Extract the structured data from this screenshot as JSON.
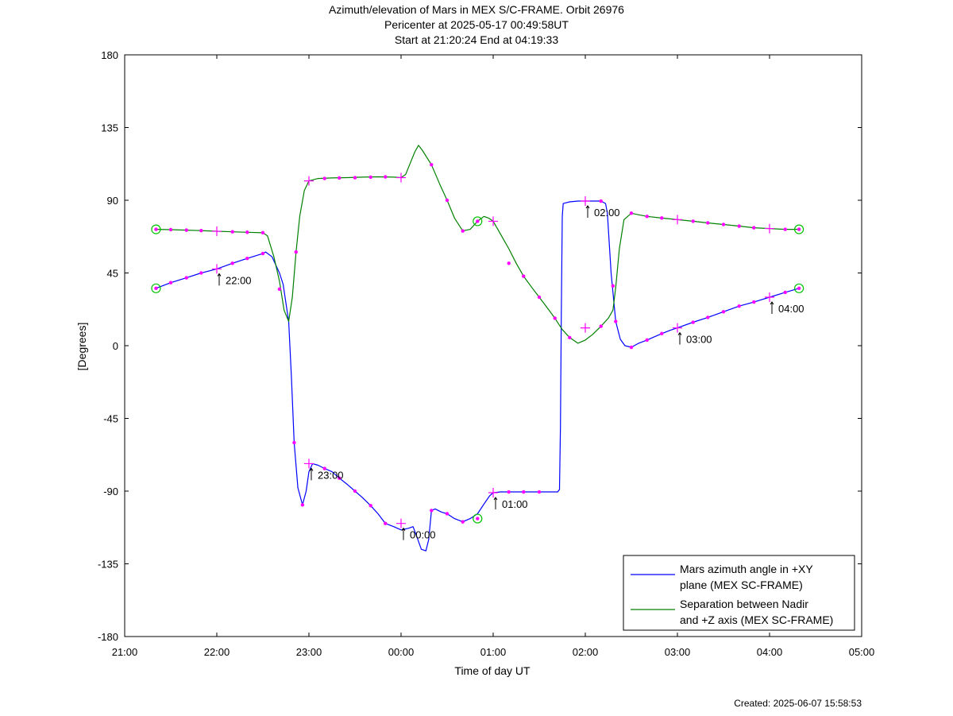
{
  "chart_data": {
    "type": "line",
    "title_lines": [
      "Azimuth/elevation of Mars in MEX S/C-FRAME.  Orbit 26976",
      "Pericenter at 2025-05-17 00:49:58UT",
      "Start at 21:20:24 End at 04:19:33"
    ],
    "xlabel": "Time of day UT",
    "ylabel": "[Degrees]",
    "xlim": [
      21.0,
      29.0
    ],
    "ylim": [
      -180,
      180
    ],
    "x_ticks": [
      {
        "v": 21,
        "label": "21:00"
      },
      {
        "v": 22,
        "label": "22:00"
      },
      {
        "v": 23,
        "label": "23:00"
      },
      {
        "v": 24,
        "label": "00:00"
      },
      {
        "v": 25,
        "label": "01:00"
      },
      {
        "v": 26,
        "label": "02:00"
      },
      {
        "v": 27,
        "label": "03:00"
      },
      {
        "v": 28,
        "label": "04:00"
      },
      {
        "v": 29,
        "label": "05:00"
      }
    ],
    "y_ticks": [
      {
        "v": 180,
        "label": "180"
      },
      {
        "v": 135,
        "label": "135"
      },
      {
        "v": 90,
        "label": "90"
      },
      {
        "v": 45,
        "label": "45"
      },
      {
        "v": 0,
        "label": "0"
      },
      {
        "v": -45,
        "label": "-45"
      },
      {
        "v": -90,
        "label": "-90"
      },
      {
        "v": -135,
        "label": "-135"
      },
      {
        "v": -180,
        "label": "-180"
      }
    ],
    "grid": false,
    "legend_position": "bottom-right",
    "series": [
      {
        "name": "Mars azimuth angle in +XY plane (MEX SC-FRAME)",
        "legend_lines": [
          "Mars azimuth angle in +XY",
          "plane (MEX SC-FRAME)"
        ],
        "color": "#0000ff",
        "points": [
          [
            21.34,
            35.5
          ],
          [
            21.5,
            39
          ],
          [
            21.67,
            42
          ],
          [
            21.83,
            45
          ],
          [
            22.0,
            47.5
          ],
          [
            22.17,
            51
          ],
          [
            22.33,
            54
          ],
          [
            22.5,
            57
          ],
          [
            22.53,
            58
          ],
          [
            22.6,
            55
          ],
          [
            22.68,
            45
          ],
          [
            22.72,
            38
          ],
          [
            22.78,
            15
          ],
          [
            22.81,
            -20
          ],
          [
            22.84,
            -60
          ],
          [
            22.88,
            -88
          ],
          [
            22.93,
            -98.5
          ],
          [
            22.97,
            -90
          ],
          [
            23.0,
            -78
          ],
          [
            23.04,
            -73
          ],
          [
            23.1,
            -74
          ],
          [
            23.17,
            -76
          ],
          [
            23.25,
            -78
          ],
          [
            23.33,
            -82
          ],
          [
            23.42,
            -86
          ],
          [
            23.5,
            -90
          ],
          [
            23.58,
            -94
          ],
          [
            23.67,
            -99
          ],
          [
            23.75,
            -104
          ],
          [
            23.83,
            -110
          ],
          [
            23.92,
            -112
          ],
          [
            24.0,
            -114
          ],
          [
            24.08,
            -113
          ],
          [
            24.13,
            -112
          ],
          [
            24.17,
            -118
          ],
          [
            24.22,
            -126
          ],
          [
            24.27,
            -127
          ],
          [
            24.3,
            -120
          ],
          [
            24.33,
            -102
          ],
          [
            24.37,
            -101
          ],
          [
            24.44,
            -103
          ],
          [
            24.5,
            -104
          ],
          [
            24.58,
            -107
          ],
          [
            24.67,
            -109
          ],
          [
            24.75,
            -107
          ],
          [
            24.83,
            -104
          ],
          [
            24.9,
            -98
          ],
          [
            24.96,
            -93
          ],
          [
            25.0,
            -91
          ],
          [
            25.08,
            -90.5
          ],
          [
            25.25,
            -90.5
          ],
          [
            25.42,
            -90.5
          ],
          [
            25.58,
            -90.5
          ],
          [
            25.7,
            -90.5
          ],
          [
            25.72,
            -89
          ],
          [
            25.73,
            -50
          ],
          [
            25.74,
            20
          ],
          [
            25.75,
            80
          ],
          [
            25.76,
            88
          ],
          [
            25.83,
            89
          ],
          [
            25.92,
            89.5
          ],
          [
            26.0,
            89.5
          ],
          [
            26.08,
            89.5
          ],
          [
            26.17,
            89.5
          ],
          [
            26.22,
            88
          ],
          [
            26.24,
            82
          ],
          [
            26.28,
            45
          ],
          [
            26.33,
            15
          ],
          [
            26.38,
            4
          ],
          [
            26.43,
            0
          ],
          [
            26.5,
            -1
          ],
          [
            26.58,
            1.5
          ],
          [
            26.67,
            3.5
          ],
          [
            26.75,
            5.5
          ],
          [
            26.83,
            7.5
          ],
          [
            26.92,
            9.5
          ],
          [
            27.0,
            11
          ],
          [
            27.17,
            14.5
          ],
          [
            27.33,
            17.5
          ],
          [
            27.5,
            21
          ],
          [
            27.67,
            24.5
          ],
          [
            27.83,
            27
          ],
          [
            28.0,
            30
          ],
          [
            28.17,
            33
          ],
          [
            28.32,
            35.5
          ]
        ],
        "markers": [
          [
            21.5,
            39
          ],
          [
            21.67,
            42
          ],
          [
            21.83,
            45
          ],
          [
            22.17,
            51
          ],
          [
            22.33,
            54
          ],
          [
            22.5,
            57
          ],
          [
            22.68,
            35
          ],
          [
            22.84,
            -60
          ],
          [
            22.93,
            -98.5
          ],
          [
            23.17,
            -76
          ],
          [
            23.33,
            -82
          ],
          [
            23.5,
            -90
          ],
          [
            23.67,
            -99
          ],
          [
            23.83,
            -110
          ],
          [
            24.33,
            -102
          ],
          [
            24.5,
            -104
          ],
          [
            24.67,
            -109
          ],
          [
            25.17,
            -90.5
          ],
          [
            25.33,
            -90.5
          ],
          [
            25.5,
            -90.5
          ],
          [
            26.17,
            89.5
          ],
          [
            26.33,
            15
          ],
          [
            26.5,
            -1
          ],
          [
            26.67,
            3.5
          ],
          [
            26.83,
            7.5
          ],
          [
            27.17,
            14.5
          ],
          [
            27.33,
            17.5
          ],
          [
            27.5,
            21
          ],
          [
            27.67,
            24.5
          ],
          [
            27.83,
            27
          ],
          [
            28.17,
            33
          ]
        ]
      },
      {
        "name": "Separation between Nadir and +Z axis (MEX SC-FRAME)",
        "legend_lines": [
          "Separation between Nadir",
          "and +Z axis (MEX SC-FRAME)"
        ],
        "color": "#008000",
        "points": [
          [
            21.34,
            72
          ],
          [
            21.5,
            71.8
          ],
          [
            21.67,
            71.5
          ],
          [
            21.83,
            71.2
          ],
          [
            22.0,
            70.8
          ],
          [
            22.17,
            70.5
          ],
          [
            22.33,
            70.2
          ],
          [
            22.5,
            69.9
          ],
          [
            22.55,
            68
          ],
          [
            22.62,
            55
          ],
          [
            22.68,
            40
          ],
          [
            22.73,
            22
          ],
          [
            22.78,
            15
          ],
          [
            22.82,
            30
          ],
          [
            22.86,
            58
          ],
          [
            22.9,
            80
          ],
          [
            22.95,
            96
          ],
          [
            23.0,
            102
          ],
          [
            23.1,
            103.5
          ],
          [
            23.25,
            103.8
          ],
          [
            23.42,
            104
          ],
          [
            23.58,
            104.3
          ],
          [
            23.75,
            104.5
          ],
          [
            23.92,
            104.3
          ],
          [
            24.0,
            104
          ],
          [
            24.05,
            106
          ],
          [
            24.1,
            113
          ],
          [
            24.15,
            120
          ],
          [
            24.19,
            124
          ],
          [
            24.23,
            121
          ],
          [
            24.33,
            112
          ],
          [
            24.42,
            100
          ],
          [
            24.5,
            90
          ],
          [
            24.58,
            79
          ],
          [
            24.67,
            71
          ],
          [
            24.75,
            72
          ],
          [
            24.83,
            77
          ],
          [
            24.9,
            80
          ],
          [
            24.95,
            79
          ],
          [
            25.0,
            77
          ],
          [
            25.08,
            69
          ],
          [
            25.17,
            60
          ],
          [
            25.25,
            51
          ],
          [
            25.33,
            43
          ],
          [
            25.42,
            36
          ],
          [
            25.5,
            30
          ],
          [
            25.58,
            24
          ],
          [
            25.67,
            17
          ],
          [
            25.75,
            10
          ],
          [
            25.83,
            5
          ],
          [
            25.92,
            1.5
          ],
          [
            26.0,
            3.5
          ],
          [
            26.08,
            7
          ],
          [
            26.17,
            12
          ],
          [
            26.25,
            17
          ],
          [
            26.3,
            22
          ],
          [
            26.33,
            36
          ],
          [
            26.37,
            60
          ],
          [
            26.42,
            78
          ],
          [
            26.5,
            82
          ],
          [
            26.58,
            81
          ],
          [
            26.67,
            80
          ],
          [
            26.83,
            79
          ],
          [
            27.0,
            78
          ],
          [
            27.17,
            77
          ],
          [
            27.33,
            76
          ],
          [
            27.5,
            75
          ],
          [
            27.67,
            74
          ],
          [
            27.83,
            73
          ],
          [
            28.0,
            72.5
          ],
          [
            28.17,
            72
          ],
          [
            28.32,
            72
          ]
        ],
        "markers": [
          [
            21.5,
            71.8
          ],
          [
            21.67,
            71.5
          ],
          [
            21.83,
            71.2
          ],
          [
            22.17,
            70.5
          ],
          [
            22.33,
            70.2
          ],
          [
            22.5,
            69.9
          ],
          [
            22.86,
            58
          ],
          [
            23.17,
            103.5
          ],
          [
            23.33,
            103.8
          ],
          [
            23.5,
            104
          ],
          [
            23.67,
            104.3
          ],
          [
            23.83,
            104.5
          ],
          [
            24.33,
            112
          ],
          [
            24.5,
            90
          ],
          [
            24.67,
            71
          ],
          [
            25.17,
            51
          ],
          [
            25.33,
            43
          ],
          [
            25.5,
            30
          ],
          [
            25.67,
            17
          ],
          [
            25.83,
            5
          ],
          [
            26.17,
            12
          ],
          [
            26.3,
            37
          ],
          [
            26.5,
            82
          ],
          [
            26.67,
            80
          ],
          [
            26.83,
            79
          ],
          [
            27.17,
            77
          ],
          [
            27.33,
            76
          ],
          [
            27.5,
            75
          ],
          [
            27.67,
            74
          ],
          [
            27.83,
            73
          ],
          [
            28.17,
            72
          ]
        ]
      }
    ],
    "hour_markers": [
      {
        "x": 22.0,
        "y": 47.5,
        "label": "22:00"
      },
      {
        "x": 22.0,
        "y": 70.8
      },
      {
        "x": 23.0,
        "y": -73,
        "label": "23:00"
      },
      {
        "x": 23.0,
        "y": 102
      },
      {
        "x": 24.0,
        "y": -110,
        "label": "00:00"
      },
      {
        "x": 24.0,
        "y": 104
      },
      {
        "x": 25.0,
        "y": -91,
        "label": "01:00"
      },
      {
        "x": 25.0,
        "y": 77
      },
      {
        "x": 26.0,
        "y": 89.5,
        "label": "02:00"
      },
      {
        "x": 26.0,
        "y": 11
      },
      {
        "x": 27.0,
        "y": 11,
        "label": "03:00"
      },
      {
        "x": 27.0,
        "y": 78
      },
      {
        "x": 28.0,
        "y": 30,
        "label": "04:00"
      },
      {
        "x": 28.0,
        "y": 72.5
      }
    ],
    "circle_markers": [
      [
        21.34,
        35.5
      ],
      [
        21.34,
        72
      ],
      [
        24.83,
        -107
      ],
      [
        24.83,
        77
      ],
      [
        28.32,
        35.5
      ],
      [
        28.32,
        72
      ]
    ],
    "marker_color": "#ff00ff",
    "circle_color": "#00c000"
  },
  "footer": {
    "created": "Created: 2025-06-07 15:58:53"
  }
}
